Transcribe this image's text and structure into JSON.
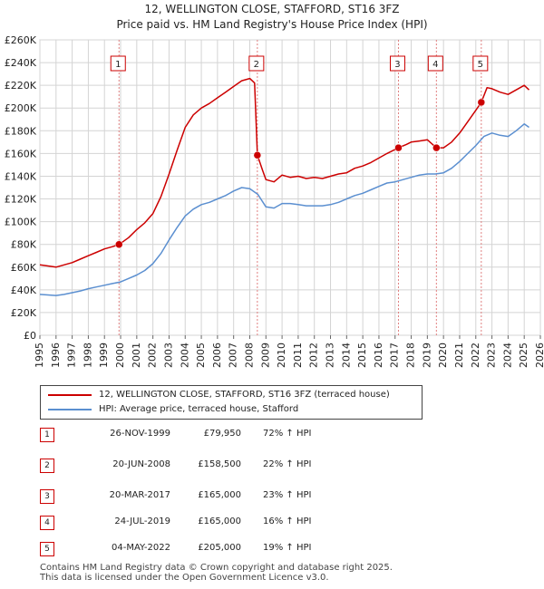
{
  "chart_data": {
    "type": "line",
    "title": "12, WELLINGTON CLOSE, STAFFORD, ST16 3FZ",
    "subtitle": "Price paid vs. HM Land Registry's House Price Index (HPI)",
    "xlim": [
      1995,
      2026
    ],
    "ylim": [
      0,
      260000
    ],
    "x_ticks": [
      1995,
      1996,
      1997,
      1998,
      1999,
      2000,
      2001,
      2002,
      2003,
      2004,
      2005,
      2006,
      2007,
      2008,
      2009,
      2010,
      2011,
      2012,
      2013,
      2014,
      2015,
      2016,
      2017,
      2018,
      2019,
      2020,
      2021,
      2022,
      2023,
      2024,
      2025,
      2026
    ],
    "y_ticks": [
      0,
      20000,
      40000,
      60000,
      80000,
      100000,
      120000,
      140000,
      160000,
      180000,
      200000,
      220000,
      240000,
      260000
    ],
    "y_tick_labels": [
      "£0",
      "£20K",
      "£40K",
      "£60K",
      "£80K",
      "£100K",
      "£120K",
      "£140K",
      "£160K",
      "£180K",
      "£200K",
      "£220K",
      "£240K",
      "£260K"
    ],
    "grid": true,
    "series": [
      {
        "name": "12, WELLINGTON CLOSE, STAFFORD, ST16 3FZ (terraced house)",
        "color": "#cc0000",
        "points": [
          [
            1995.0,
            62000
          ],
          [
            1995.5,
            61000
          ],
          [
            1996.0,
            60000
          ],
          [
            1996.5,
            62000
          ],
          [
            1997.0,
            64000
          ],
          [
            1997.5,
            67000
          ],
          [
            1998.0,
            70000
          ],
          [
            1998.5,
            73000
          ],
          [
            1999.0,
            76000
          ],
          [
            1999.5,
            78000
          ],
          [
            1999.9,
            79950
          ],
          [
            2000.5,
            86000
          ],
          [
            2001.0,
            93000
          ],
          [
            2001.5,
            99000
          ],
          [
            2002.0,
            107000
          ],
          [
            2002.5,
            122000
          ],
          [
            2003.0,
            142000
          ],
          [
            2003.5,
            163000
          ],
          [
            2004.0,
            183000
          ],
          [
            2004.5,
            194000
          ],
          [
            2005.0,
            200000
          ],
          [
            2005.5,
            204000
          ],
          [
            2006.0,
            209000
          ],
          [
            2006.5,
            214000
          ],
          [
            2007.0,
            219000
          ],
          [
            2007.5,
            224000
          ],
          [
            2008.0,
            226000
          ],
          [
            2008.3,
            222000
          ],
          [
            2008.47,
            158500
          ],
          [
            2008.8,
            145000
          ],
          [
            2009.0,
            137000
          ],
          [
            2009.5,
            135000
          ],
          [
            2010.0,
            141000
          ],
          [
            2010.5,
            139000
          ],
          [
            2011.0,
            140000
          ],
          [
            2011.5,
            138000
          ],
          [
            2012.0,
            139000
          ],
          [
            2012.5,
            138000
          ],
          [
            2013.0,
            140000
          ],
          [
            2013.5,
            142000
          ],
          [
            2014.0,
            143000
          ],
          [
            2014.5,
            147000
          ],
          [
            2015.0,
            149000
          ],
          [
            2015.5,
            152000
          ],
          [
            2016.0,
            156000
          ],
          [
            2016.5,
            160000
          ],
          [
            2017.21,
            165000
          ],
          [
            2017.7,
            168000
          ],
          [
            2018.0,
            170000
          ],
          [
            2018.5,
            171000
          ],
          [
            2019.0,
            172000
          ],
          [
            2019.56,
            165000
          ],
          [
            2020.0,
            165000
          ],
          [
            2020.5,
            170000
          ],
          [
            2021.0,
            178000
          ],
          [
            2021.5,
            188000
          ],
          [
            2022.0,
            198000
          ],
          [
            2022.34,
            205000
          ],
          [
            2022.7,
            218000
          ],
          [
            2023.0,
            217000
          ],
          [
            2023.5,
            214000
          ],
          [
            2024.0,
            212000
          ],
          [
            2024.5,
            216000
          ],
          [
            2025.0,
            220000
          ],
          [
            2025.3,
            216000
          ]
        ]
      },
      {
        "name": "HPI: Average price, terraced house, Stafford",
        "color": "#5b8fd0",
        "points": [
          [
            1995.0,
            36000
          ],
          [
            1995.5,
            35500
          ],
          [
            1996.0,
            35000
          ],
          [
            1996.5,
            36000
          ],
          [
            1997.0,
            37500
          ],
          [
            1997.5,
            39000
          ],
          [
            1998.0,
            41000
          ],
          [
            1998.5,
            42500
          ],
          [
            1999.0,
            44000
          ],
          [
            1999.5,
            45500
          ],
          [
            2000.0,
            47000
          ],
          [
            2000.5,
            50000
          ],
          [
            2001.0,
            53000
          ],
          [
            2001.5,
            57000
          ],
          [
            2002.0,
            63000
          ],
          [
            2002.5,
            72000
          ],
          [
            2003.0,
            84000
          ],
          [
            2003.5,
            95000
          ],
          [
            2004.0,
            105000
          ],
          [
            2004.5,
            111000
          ],
          [
            2005.0,
            115000
          ],
          [
            2005.5,
            117000
          ],
          [
            2006.0,
            120000
          ],
          [
            2006.5,
            123000
          ],
          [
            2007.0,
            127000
          ],
          [
            2007.5,
            130000
          ],
          [
            2008.0,
            129000
          ],
          [
            2008.5,
            124000
          ],
          [
            2009.0,
            113000
          ],
          [
            2009.5,
            112000
          ],
          [
            2010.0,
            116000
          ],
          [
            2010.5,
            116000
          ],
          [
            2011.0,
            115000
          ],
          [
            2011.5,
            114000
          ],
          [
            2012.0,
            114000
          ],
          [
            2012.5,
            114000
          ],
          [
            2013.0,
            115000
          ],
          [
            2013.5,
            117000
          ],
          [
            2014.0,
            120000
          ],
          [
            2014.5,
            123000
          ],
          [
            2015.0,
            125000
          ],
          [
            2015.5,
            128000
          ],
          [
            2016.0,
            131000
          ],
          [
            2016.5,
            134000
          ],
          [
            2017.0,
            135000
          ],
          [
            2017.5,
            137000
          ],
          [
            2018.0,
            139000
          ],
          [
            2018.5,
            141000
          ],
          [
            2019.0,
            142000
          ],
          [
            2019.5,
            142000
          ],
          [
            2020.0,
            143000
          ],
          [
            2020.5,
            147000
          ],
          [
            2021.0,
            153000
          ],
          [
            2021.5,
            160000
          ],
          [
            2022.0,
            167000
          ],
          [
            2022.5,
            175000
          ],
          [
            2023.0,
            178000
          ],
          [
            2023.5,
            176000
          ],
          [
            2024.0,
            175000
          ],
          [
            2024.5,
            180000
          ],
          [
            2025.0,
            186000
          ],
          [
            2025.3,
            183000
          ]
        ]
      }
    ],
    "sales": [
      {
        "label": "1",
        "x": 1999.9,
        "y": 79950
      },
      {
        "label": "2",
        "x": 2008.47,
        "y": 158500
      },
      {
        "label": "3",
        "x": 2017.21,
        "y": 165000
      },
      {
        "label": "4",
        "x": 2019.56,
        "y": 165000
      },
      {
        "label": "5",
        "x": 2022.34,
        "y": 205000
      }
    ]
  },
  "legend": {
    "property": "12, WELLINGTON CLOSE, STAFFORD, ST16 3FZ (terraced house)",
    "hpi": "HPI: Average price, terraced house, Stafford",
    "property_color": "#cc0000",
    "hpi_color": "#5b8fd0"
  },
  "transactions": [
    {
      "num": "1",
      "date": "26-NOV-1999",
      "price": "£79,950",
      "hpi": "72% ↑ HPI"
    },
    {
      "num": "2",
      "date": "20-JUN-2008",
      "price": "£158,500",
      "hpi": "22% ↑ HPI"
    },
    {
      "num": "3",
      "date": "20-MAR-2017",
      "price": "£165,000",
      "hpi": "23% ↑ HPI"
    },
    {
      "num": "4",
      "date": "24-JUL-2019",
      "price": "£165,000",
      "hpi": "16% ↑ HPI"
    },
    {
      "num": "5",
      "date": "04-MAY-2022",
      "price": "£205,000",
      "hpi": "19% ↑ HPI"
    }
  ],
  "footer": {
    "line1": "Contains HM Land Registry data © Crown copyright and database right 2025.",
    "line2": "This data is licensed under the Open Government Licence v3.0."
  }
}
